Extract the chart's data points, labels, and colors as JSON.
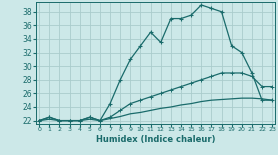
{
  "xlabel": "Humidex (Indice chaleur)",
  "bg_color": "#cce8e8",
  "grid_color": "#aacccc",
  "line_color": "#1a6b6b",
  "x": [
    0,
    1,
    2,
    3,
    4,
    5,
    6,
    7,
    8,
    9,
    10,
    11,
    12,
    13,
    14,
    15,
    16,
    17,
    18,
    19,
    20,
    21,
    22,
    23
  ],
  "y_top": [
    22,
    22.5,
    22,
    22,
    22,
    22.5,
    22,
    24.5,
    28,
    31,
    33,
    35,
    33.5,
    37,
    37,
    37.5,
    39,
    38.5,
    38,
    33,
    32,
    29,
    25,
    25
  ],
  "y_mid": [
    22,
    22.5,
    22,
    22,
    22,
    22.5,
    22,
    22.5,
    23.5,
    24.5,
    25,
    25.5,
    26,
    26.5,
    27,
    27.5,
    28,
    28.5,
    29,
    29,
    29,
    28.5,
    27,
    27
  ],
  "y_bot": [
    22,
    22.2,
    22,
    22,
    22,
    22.2,
    22,
    22.3,
    22.6,
    23,
    23.2,
    23.5,
    23.8,
    24,
    24.3,
    24.5,
    24.8,
    25,
    25.1,
    25.2,
    25.3,
    25.3,
    25.2,
    25
  ],
  "xlim": [
    -0.3,
    23.3
  ],
  "ylim": [
    21.5,
    39.5
  ],
  "yticks": [
    22,
    24,
    26,
    28,
    30,
    32,
    34,
    36,
    38
  ],
  "xtick_labels": [
    "0",
    "1",
    "2",
    "3",
    "4",
    "5",
    "6",
    "7",
    "8",
    "9",
    "10",
    "11",
    "12",
    "13",
    "14",
    "15",
    "16",
    "17",
    "18",
    "19",
    "20",
    "21",
    "22",
    "23"
  ]
}
